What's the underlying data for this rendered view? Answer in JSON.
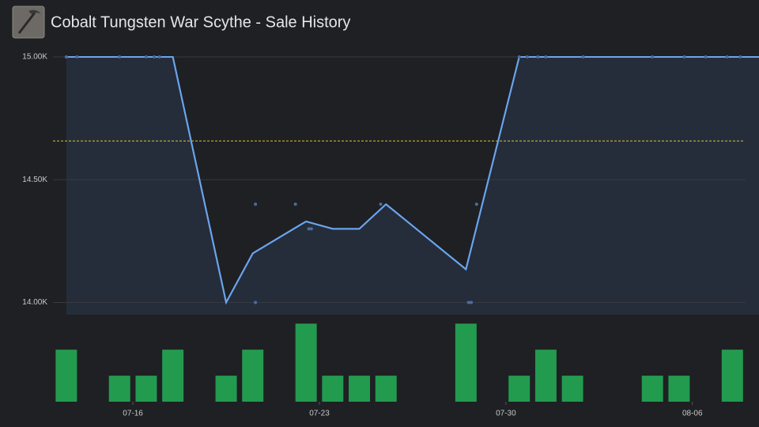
{
  "chart_data": {
    "type": "line",
    "title": "Cobalt Tungsten War Scythe - Sale History",
    "xlim": [
      0,
      26.5
    ],
    "xticks": [
      {
        "value": 3,
        "label": "07-16"
      },
      {
        "value": 10,
        "label": "07-23"
      },
      {
        "value": 17,
        "label": "07-30"
      },
      {
        "value": 24,
        "label": "08-06"
      }
    ],
    "ylim": [
      13950,
      15030
    ],
    "yticks": [
      {
        "value": 14000,
        "label": "14.00K"
      },
      {
        "value": 14500,
        "label": "14.50K"
      },
      {
        "value": 15000,
        "label": "15.00K"
      }
    ],
    "y2lim": [
      0,
      3.1
    ],
    "grid": true,
    "average_line": {
      "value": 14658,
      "color": "#e3c232"
    },
    "series": [
      {
        "type": "line",
        "color": "#6aa5ef",
        "fill": "#252d3a",
        "x": [
          0.5,
          4.5,
          6.5,
          7.5,
          9.5,
          10.5,
          11.5,
          12.5,
          15.5,
          17.5,
          26.5
        ],
        "values": [
          15000,
          15000,
          14000,
          14200,
          14330,
          14300,
          14300,
          14400,
          14135,
          15000,
          15000
        ]
      },
      {
        "type": "scatter",
        "color": "#4d6d9e",
        "x": [
          0.5,
          0.9,
          2.5,
          3.5,
          3.8,
          4.0,
          7.6,
          7.6,
          9.1,
          9.6,
          9.7,
          12.3,
          15.6,
          15.7,
          15.9,
          17.5,
          17.8,
          18.2,
          18.5,
          19.9,
          22.5,
          23.7,
          24.5,
          25.3,
          25.8
        ],
        "values": [
          15000,
          15000,
          15000,
          15000,
          15000,
          15000,
          14400,
          14000,
          14400,
          14300,
          14300,
          14400,
          14000,
          14000,
          14400,
          15000,
          15000,
          15000,
          15000,
          15000,
          15000,
          15000,
          15000,
          15000,
          15000
        ]
      },
      {
        "type": "bar",
        "axis": "y2",
        "color": "#229b4f",
        "x": [
          0.5,
          2.5,
          3.5,
          4.5,
          6.5,
          7.5,
          9.5,
          10.5,
          11.5,
          12.5,
          15.5,
          17.5,
          18.5,
          19.5,
          22.5,
          23.5,
          25.5
        ],
        "values": [
          2,
          1,
          1,
          2,
          1,
          2,
          3,
          1,
          1,
          1,
          3,
          1,
          2,
          1,
          1,
          1,
          2
        ]
      }
    ]
  }
}
